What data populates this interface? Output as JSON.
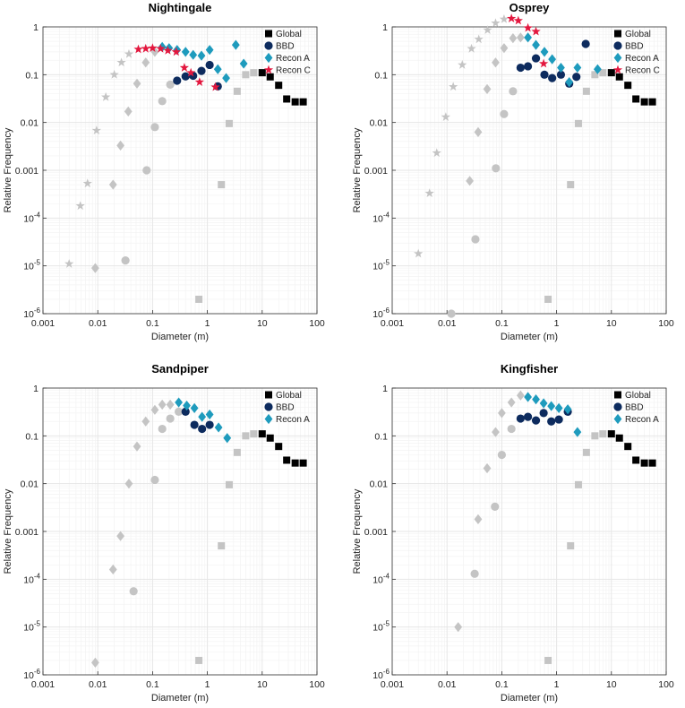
{
  "colors": {
    "global": "#000000",
    "bbd": "#0d2b5e",
    "reconA": "#1e9bbd",
    "reconC": "#e3173e",
    "grey": "#c4c4c4",
    "grid": "#e6e6e6",
    "minorGrid": "#f3f3f3",
    "frame": "#333333"
  },
  "chart_data": [
    {
      "type": "scatter",
      "title": "Nightingale",
      "xlabel": "Diameter (m)",
      "ylabel": "Relative Frequency",
      "xscale": "log",
      "yscale": "log",
      "xlim": [
        0.001,
        100
      ],
      "ylim": [
        1e-06,
        1
      ],
      "x_tick_labels": [
        "0.001",
        "0.01",
        "0.1",
        "1",
        "10",
        "100"
      ],
      "y_tick_labels": [
        {
          "base": "1",
          "exp": ""
        },
        {
          "base": "0.1",
          "exp": ""
        },
        {
          "base": "0.01",
          "exp": ""
        },
        {
          "base": "0.001",
          "exp": ""
        },
        {
          "base": "10",
          "exp": "-4"
        },
        {
          "base": "10",
          "exp": "-5"
        },
        {
          "base": "10",
          "exp": "-6"
        }
      ],
      "legend": [
        "Global",
        "BBD",
        "Recon A",
        "Recon C"
      ],
      "series": [
        {
          "name": "Global",
          "marker": "square",
          "x": [
            10,
            14,
            20,
            28,
            40,
            56
          ],
          "y": [
            0.11,
            0.09,
            0.06,
            0.031,
            0.027,
            0.027
          ]
        },
        {
          "name": "Global (small, grey)",
          "marker": "square",
          "grey": true,
          "x": [
            0.7,
            1.8,
            2.5,
            3.5,
            5,
            7
          ],
          "y": [
            2e-06,
            0.0005,
            0.0095,
            0.045,
            0.1,
            0.11
          ]
        },
        {
          "name": "BBD",
          "marker": "circle",
          "x": [
            0.28,
            0.4,
            0.55,
            0.78,
            1.1,
            1.55
          ],
          "y": [
            0.075,
            0.092,
            0.095,
            0.12,
            0.16,
            0.057
          ]
        },
        {
          "name": "BBD (small, grey)",
          "marker": "circle",
          "grey": true,
          "x": [
            0.032,
            0.078,
            0.11,
            0.15,
            0.21
          ],
          "y": [
            1.3e-05,
            0.001,
            0.008,
            0.028,
            0.062
          ]
        },
        {
          "name": "Recon A",
          "marker": "diamond",
          "x": [
            0.15,
            0.2,
            0.28,
            0.4,
            0.55,
            0.78,
            1.1,
            1.55,
            2.2,
            3.3,
            4.6
          ],
          "y": [
            0.38,
            0.36,
            0.33,
            0.3,
            0.26,
            0.25,
            0.33,
            0.13,
            0.085,
            0.42,
            0.17
          ]
        },
        {
          "name": "Recon A (small, grey)",
          "marker": "diamond",
          "grey": true,
          "x": [
            0.009,
            0.019,
            0.026,
            0.036,
            0.052,
            0.075,
            0.11
          ],
          "y": [
            9e-06,
            0.0005,
            0.0033,
            0.017,
            0.065,
            0.18,
            0.3
          ]
        },
        {
          "name": "Recon C",
          "marker": "star",
          "x": [
            0.055,
            0.075,
            0.1,
            0.14,
            0.19,
            0.27,
            0.38,
            0.5,
            0.72,
            1.4
          ],
          "y": [
            0.34,
            0.35,
            0.36,
            0.35,
            0.32,
            0.3,
            0.14,
            0.11,
            0.07,
            0.055
          ]
        },
        {
          "name": "Recon C (small, grey)",
          "marker": "star",
          "grey": true,
          "x": [
            0.003,
            0.0048,
            0.0065,
            0.0095,
            0.014,
            0.02,
            0.027,
            0.037
          ],
          "y": [
            1.1e-05,
            0.00018,
            0.00053,
            0.0068,
            0.034,
            0.1,
            0.18,
            0.27
          ]
        }
      ]
    },
    {
      "type": "scatter",
      "title": "Osprey",
      "xlabel": "Diameter (m)",
      "ylabel": "Relative Frequency",
      "xscale": "log",
      "yscale": "log",
      "xlim": [
        0.001,
        100
      ],
      "ylim": [
        1e-06,
        1
      ],
      "x_tick_labels": [
        "0.001",
        "0.01",
        "0.1",
        "1",
        "10",
        "100"
      ],
      "y_tick_labels": [
        {
          "base": "1",
          "exp": ""
        },
        {
          "base": "0.1",
          "exp": ""
        },
        {
          "base": "0.01",
          "exp": ""
        },
        {
          "base": "0.001",
          "exp": ""
        },
        {
          "base": "10",
          "exp": "-4"
        },
        {
          "base": "10",
          "exp": "-5"
        },
        {
          "base": "10",
          "exp": "-6"
        }
      ],
      "legend": [
        "Global",
        "BBD",
        "Recon A",
        "Recon C"
      ],
      "series": [
        {
          "name": "Global",
          "marker": "square",
          "x": [
            10,
            14,
            20,
            28,
            40,
            56
          ],
          "y": [
            0.11,
            0.09,
            0.06,
            0.031,
            0.027,
            0.027
          ]
        },
        {
          "name": "Global (small, grey)",
          "marker": "square",
          "grey": true,
          "x": [
            0.7,
            1.8,
            2.5,
            3.5,
            5,
            7
          ],
          "y": [
            2e-06,
            0.0005,
            0.0095,
            0.045,
            0.1,
            0.11
          ]
        },
        {
          "name": "BBD",
          "marker": "circle",
          "x": [
            0.22,
            0.3,
            0.42,
            0.6,
            0.83,
            1.2,
            1.7,
            2.3,
            3.4
          ],
          "y": [
            0.14,
            0.15,
            0.22,
            0.1,
            0.085,
            0.1,
            0.065,
            0.09,
            0.44
          ]
        },
        {
          "name": "BBD (small, grey)",
          "marker": "circle",
          "grey": true,
          "x": [
            0.012,
            0.033,
            0.078,
            0.11,
            0.16
          ],
          "y": [
            1e-06,
            3.6e-05,
            0.0011,
            0.015,
            0.045
          ]
        },
        {
          "name": "Recon A",
          "marker": "diamond",
          "x": [
            0.3,
            0.42,
            0.6,
            0.83,
            1.2,
            1.7,
            2.4,
            5.6
          ],
          "y": [
            0.6,
            0.42,
            0.3,
            0.21,
            0.14,
            0.07,
            0.14,
            0.13
          ]
        },
        {
          "name": "Recon A (small, grey)",
          "marker": "diamond",
          "grey": true,
          "x": [
            0.026,
            0.037,
            0.054,
            0.077,
            0.11,
            0.16,
            0.22
          ],
          "y": [
            0.0006,
            0.0063,
            0.05,
            0.18,
            0.36,
            0.58,
            0.6
          ]
        },
        {
          "name": "Recon C",
          "marker": "star",
          "x": [
            0.15,
            0.2,
            0.3,
            0.42,
            0.58
          ],
          "y": [
            1.5,
            1.35,
            0.95,
            0.8,
            0.17
          ]
        },
        {
          "name": "Recon C (small, grey)",
          "marker": "star",
          "grey": true,
          "x": [
            0.003,
            0.0048,
            0.0065,
            0.0095,
            0.013,
            0.019,
            0.028,
            0.038,
            0.055,
            0.077,
            0.11
          ],
          "y": [
            1.8e-05,
            0.00033,
            0.0023,
            0.013,
            0.056,
            0.16,
            0.35,
            0.55,
            0.86,
            1.2,
            1.45
          ]
        }
      ]
    },
    {
      "type": "scatter",
      "title": "Sandpiper",
      "xlabel": "Diameter (m)",
      "ylabel": "Relative Frequency",
      "xscale": "log",
      "yscale": "log",
      "xlim": [
        0.001,
        100
      ],
      "ylim": [
        1e-06,
        1
      ],
      "x_tick_labels": [
        "0.001",
        "0.01",
        "0.1",
        "1",
        "10",
        "100"
      ],
      "y_tick_labels": [
        {
          "base": "1",
          "exp": ""
        },
        {
          "base": "0.1",
          "exp": ""
        },
        {
          "base": "0.01",
          "exp": ""
        },
        {
          "base": "0.001",
          "exp": ""
        },
        {
          "base": "10",
          "exp": "-4"
        },
        {
          "base": "10",
          "exp": "-5"
        },
        {
          "base": "10",
          "exp": "-6"
        }
      ],
      "legend": [
        "Global",
        "BBD",
        "Recon A"
      ],
      "series": [
        {
          "name": "Global",
          "marker": "square",
          "x": [
            10,
            14,
            20,
            28,
            40,
            56
          ],
          "y": [
            0.11,
            0.09,
            0.06,
            0.031,
            0.027,
            0.027
          ]
        },
        {
          "name": "Global (small, grey)",
          "marker": "square",
          "grey": true,
          "x": [
            0.7,
            1.8,
            2.5,
            3.5,
            5,
            7
          ],
          "y": [
            2e-06,
            0.0005,
            0.0095,
            0.045,
            0.1,
            0.11
          ]
        },
        {
          "name": "BBD",
          "marker": "circle",
          "x": [
            0.4,
            0.58,
            0.8,
            1.1
          ],
          "y": [
            0.32,
            0.17,
            0.14,
            0.17
          ]
        },
        {
          "name": "BBD (small, grey)",
          "marker": "circle",
          "grey": true,
          "x": [
            0.045,
            0.11,
            0.15,
            0.21,
            0.3
          ],
          "y": [
            5.6e-05,
            0.012,
            0.14,
            0.23,
            0.32
          ]
        },
        {
          "name": "Recon A",
          "marker": "diamond",
          "x": [
            0.3,
            0.42,
            0.58,
            0.8,
            1.1,
            1.6,
            2.3
          ],
          "y": [
            0.5,
            0.43,
            0.38,
            0.25,
            0.28,
            0.15,
            0.09
          ]
        },
        {
          "name": "Recon A (small, grey)",
          "marker": "diamond",
          "grey": true,
          "x": [
            0.009,
            0.019,
            0.026,
            0.037,
            0.052,
            0.075,
            0.11,
            0.15,
            0.21
          ],
          "y": [
            1.8e-06,
            0.00016,
            0.0008,
            0.01,
            0.06,
            0.2,
            0.35,
            0.45,
            0.45
          ]
        }
      ]
    },
    {
      "type": "scatter",
      "title": "Kingfisher",
      "xlabel": "Diameter (m)",
      "ylabel": "Relative Frequency",
      "xscale": "log",
      "yscale": "log",
      "xlim": [
        0.001,
        100
      ],
      "ylim": [
        1e-06,
        1
      ],
      "x_tick_labels": [
        "0.001",
        "0.01",
        "0.1",
        "1",
        "10",
        "100"
      ],
      "y_tick_labels": [
        {
          "base": "1",
          "exp": ""
        },
        {
          "base": "0.1",
          "exp": ""
        },
        {
          "base": "0.01",
          "exp": ""
        },
        {
          "base": "0.001",
          "exp": ""
        },
        {
          "base": "10",
          "exp": "-4"
        },
        {
          "base": "10",
          "exp": "-5"
        },
        {
          "base": "10",
          "exp": "-6"
        }
      ],
      "legend": [
        "Global",
        "BBD",
        "Recon A"
      ],
      "series": [
        {
          "name": "Global",
          "marker": "square",
          "x": [
            10,
            14,
            20,
            28,
            40,
            56
          ],
          "y": [
            0.11,
            0.09,
            0.06,
            0.031,
            0.027,
            0.027
          ]
        },
        {
          "name": "Global (small, grey)",
          "marker": "square",
          "grey": true,
          "x": [
            0.7,
            1.8,
            2.5,
            3.5,
            5,
            7
          ],
          "y": [
            2e-06,
            0.0005,
            0.0095,
            0.045,
            0.1,
            0.11
          ]
        },
        {
          "name": "BBD",
          "marker": "circle",
          "x": [
            0.22,
            0.3,
            0.42,
            0.58,
            0.8,
            1.1,
            1.6
          ],
          "y": [
            0.23,
            0.25,
            0.21,
            0.3,
            0.2,
            0.22,
            0.32
          ]
        },
        {
          "name": "BBD (small, grey)",
          "marker": "circle",
          "grey": true,
          "x": [
            0.032,
            0.075,
            0.1,
            0.15
          ],
          "y": [
            0.00013,
            0.0033,
            0.04,
            0.14
          ]
        },
        {
          "name": "Recon A",
          "marker": "diamond",
          "x": [
            0.3,
            0.42,
            0.58,
            0.8,
            1.1,
            1.6,
            2.4
          ],
          "y": [
            0.65,
            0.58,
            0.48,
            0.42,
            0.38,
            0.36,
            0.12
          ]
        },
        {
          "name": "Recon A (small, grey)",
          "marker": "diamond",
          "grey": true,
          "x": [
            0.016,
            0.037,
            0.054,
            0.077,
            0.1,
            0.15,
            0.22
          ],
          "y": [
            1e-05,
            0.0018,
            0.021,
            0.12,
            0.3,
            0.5,
            0.7
          ]
        }
      ]
    }
  ]
}
